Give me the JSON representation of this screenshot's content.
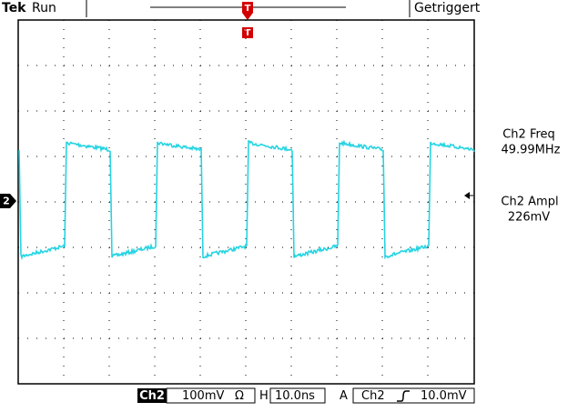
{
  "header": {
    "brand": "Tek",
    "status": "Run",
    "trigger_state": "Getriggert"
  },
  "markers": {
    "trigger": "T",
    "channel": "2"
  },
  "measurements": [
    {
      "label": "Ch2 Freq",
      "value": "49.99MHz"
    },
    {
      "label": "Ch2 Ampl",
      "value": "226mV"
    }
  ],
  "footer": {
    "channel": "Ch2",
    "scale": "100mV",
    "coupling": "Ω",
    "horizontal_label": "H",
    "timebase": "10.0ns",
    "trigger_label": "A",
    "trigger_source": "Ch2",
    "trigger_level": "10.0mV"
  }
}
